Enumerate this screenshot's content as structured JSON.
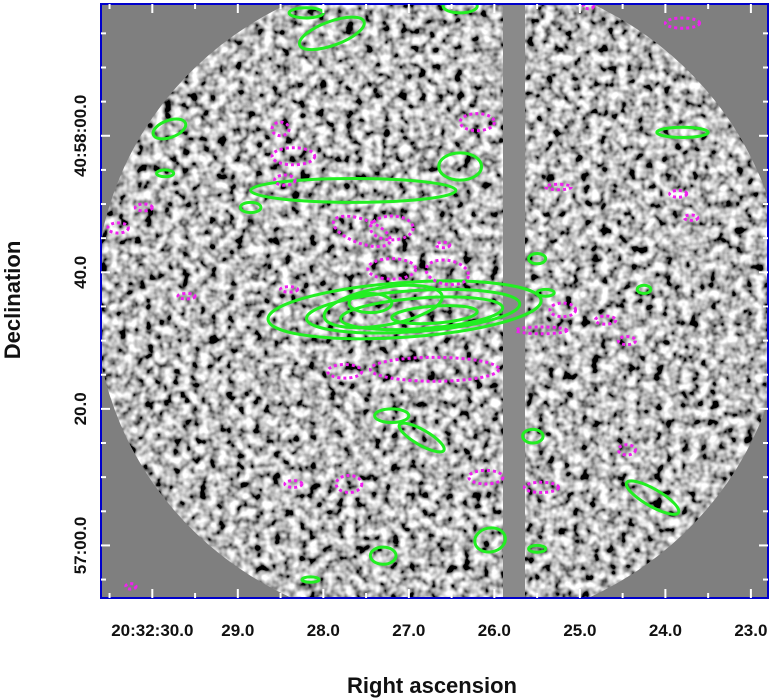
{
  "chart_data": {
    "type": "heatmap",
    "title": "",
    "xlabel": "Right ascension",
    "ylabel": "Declination",
    "colormap": "greyscale",
    "x_ticks": [
      {
        "label": "20:32:30.0",
        "value_s": 30.0
      },
      {
        "label": "29.0",
        "value_s": 29.0
      },
      {
        "label": "28.0",
        "value_s": 28.0
      },
      {
        "label": "27.0",
        "value_s": 27.0
      },
      {
        "label": "26.0",
        "value_s": 26.0
      },
      {
        "label": "25.0",
        "value_s": 25.0
      },
      {
        "label": "24.0",
        "value_s": 24.0
      },
      {
        "label": "23.0",
        "value_s": 23.0
      }
    ],
    "y_ticks": [
      {
        "label": "40:58:00.0",
        "value_s": 60.0
      },
      {
        "label": "40.0",
        "value_s": 40.0
      },
      {
        "label": "20.0",
        "value_s": 20.0
      },
      {
        "label": "57:00.0",
        "value_s": 0.0
      }
    ],
    "xlim_s": [
      30.6,
      22.8
    ],
    "ylim_s": [
      -7.7,
      79.3
    ],
    "frame_color": "#0000cc",
    "series": [
      {
        "color": "#22ee22",
        "style": "solid",
        "contours": [
          {
            "ra": 27.05,
            "dec": 34.5,
            "w": 1.6,
            "h": 8,
            "rot": -4
          },
          {
            "ra": 26.95,
            "dec": 34.3,
            "w": 1.25,
            "h": 6,
            "rot": -4
          },
          {
            "ra": 26.85,
            "dec": 34.0,
            "w": 0.95,
            "h": 4.5,
            "rot": -4
          },
          {
            "ra": 26.7,
            "dec": 33.8,
            "w": 0.5,
            "h": 2.5,
            "rot": -4
          },
          {
            "ra": 27.3,
            "dec": 35.0,
            "w": 0.7,
            "h": 5.5,
            "rot": -10
          },
          {
            "ra": 27.45,
            "dec": 35.5,
            "w": 0.25,
            "h": 2.8,
            "rot": 0
          },
          {
            "ra": 27.65,
            "dec": 52.0,
            "w": 1.2,
            "h": 3.5,
            "rot": 0
          },
          {
            "ra": 27.9,
            "dec": 75.0,
            "w": 0.4,
            "h": 3.5,
            "rot": -20
          },
          {
            "ra": 28.2,
            "dec": 78.0,
            "w": 0.2,
            "h": 1.5,
            "rot": 0
          },
          {
            "ra": 26.4,
            "dec": 79.0,
            "w": 0.2,
            "h": 2.0,
            "rot": 0
          },
          {
            "ra": 29.8,
            "dec": 61.0,
            "w": 0.2,
            "h": 2.5,
            "rot": -20
          },
          {
            "ra": 29.85,
            "dec": 54.5,
            "w": 0.1,
            "h": 1.0,
            "rot": 0
          },
          {
            "ra": 28.85,
            "dec": 49.5,
            "w": 0.12,
            "h": 1.5,
            "rot": 0
          },
          {
            "ra": 26.4,
            "dec": 55.5,
            "w": 0.25,
            "h": 4.0,
            "rot": 0
          },
          {
            "ra": 25.5,
            "dec": 42.0,
            "w": 0.1,
            "h": 1.5,
            "rot": 0
          },
          {
            "ra": 25.4,
            "dec": 37.0,
            "w": 0.1,
            "h": 1.0,
            "rot": 0
          },
          {
            "ra": 27.2,
            "dec": 19.0,
            "w": 0.2,
            "h": 2.0,
            "rot": 0
          },
          {
            "ra": 26.85,
            "dec": 15.8,
            "w": 0.3,
            "h": 2.2,
            "rot": 30
          },
          {
            "ra": 25.55,
            "dec": 16.0,
            "w": 0.12,
            "h": 2.0,
            "rot": 0
          },
          {
            "ra": 26.05,
            "dec": 0.8,
            "w": 0.18,
            "h": 3.5,
            "rot": -10
          },
          {
            "ra": 27.3,
            "dec": -1.5,
            "w": 0.15,
            "h": 2.5,
            "rot": 0
          },
          {
            "ra": 25.5,
            "dec": -0.5,
            "w": 0.1,
            "h": 1.0,
            "rot": 0
          },
          {
            "ra": 24.15,
            "dec": 7.0,
            "w": 0.35,
            "h": 2.5,
            "rot": 30
          },
          {
            "ra": 23.8,
            "dec": 60.5,
            "w": 0.3,
            "h": 1.5,
            "rot": 0
          },
          {
            "ra": 24.25,
            "dec": 37.5,
            "w": 0.08,
            "h": 1.2,
            "rot": 0
          },
          {
            "ra": 28.15,
            "dec": -5.0,
            "w": 0.1,
            "h": 0.8,
            "rot": 0
          }
        ]
      },
      {
        "color": "#ee22ee",
        "style": "dotted",
        "contours": [
          {
            "ra": 27.55,
            "dec": 46.0,
            "w": 0.35,
            "h": 3.5,
            "rot": 20
          },
          {
            "ra": 27.2,
            "dec": 46.5,
            "w": 0.25,
            "h": 3.5,
            "rot": 0
          },
          {
            "ra": 27.2,
            "dec": 40.5,
            "w": 0.28,
            "h": 3.0,
            "rot": 0
          },
          {
            "ra": 26.55,
            "dec": 40.0,
            "w": 0.25,
            "h": 3.5,
            "rot": 10
          },
          {
            "ra": 26.7,
            "dec": 25.8,
            "w": 0.75,
            "h": 3.5,
            "rot": 0
          },
          {
            "ra": 27.75,
            "dec": 25.5,
            "w": 0.2,
            "h": 2.0,
            "rot": 0
          },
          {
            "ra": 28.35,
            "dec": 57.0,
            "w": 0.25,
            "h": 2.5,
            "rot": 0
          },
          {
            "ra": 28.5,
            "dec": 61.0,
            "w": 0.1,
            "h": 2.0,
            "rot": 0
          },
          {
            "ra": 28.45,
            "dec": 53.5,
            "w": 0.12,
            "h": 1.5,
            "rot": 0
          },
          {
            "ra": 26.2,
            "dec": 62.0,
            "w": 0.2,
            "h": 2.5,
            "rot": 0
          },
          {
            "ra": 25.45,
            "dec": 31.5,
            "w": 0.3,
            "h": 1.0,
            "rot": 0
          },
          {
            "ra": 25.2,
            "dec": 34.5,
            "w": 0.15,
            "h": 2.0,
            "rot": 0
          },
          {
            "ra": 24.7,
            "dec": 33.0,
            "w": 0.12,
            "h": 1.2,
            "rot": 0
          },
          {
            "ra": 24.45,
            "dec": 30.0,
            "w": 0.1,
            "h": 1.2,
            "rot": 0
          },
          {
            "ra": 27.7,
            "dec": 9.0,
            "w": 0.15,
            "h": 2.5,
            "rot": 0
          },
          {
            "ra": 26.1,
            "dec": 10.0,
            "w": 0.2,
            "h": 2.0,
            "rot": 0
          },
          {
            "ra": 25.45,
            "dec": 8.5,
            "w": 0.2,
            "h": 1.5,
            "rot": 0
          },
          {
            "ra": 24.45,
            "dec": 14.0,
            "w": 0.1,
            "h": 1.5,
            "rot": 0
          },
          {
            "ra": 23.8,
            "dec": 76.5,
            "w": 0.2,
            "h": 1.5,
            "rot": 0
          },
          {
            "ra": 30.4,
            "dec": 46.5,
            "w": 0.12,
            "h": 1.5,
            "rot": 0
          },
          {
            "ra": 30.1,
            "dec": 49.5,
            "w": 0.1,
            "h": 1.0,
            "rot": 0
          },
          {
            "ra": 28.35,
            "dec": 9.0,
            "w": 0.1,
            "h": 1.0,
            "rot": 0
          },
          {
            "ra": 29.6,
            "dec": 36.5,
            "w": 0.1,
            "h": 0.8,
            "rot": 0
          },
          {
            "ra": 28.4,
            "dec": 37.5,
            "w": 0.1,
            "h": 0.8,
            "rot": 0
          },
          {
            "ra": 25.25,
            "dec": 52.5,
            "w": 0.15,
            "h": 0.8,
            "rot": 0
          },
          {
            "ra": 23.85,
            "dec": 51.5,
            "w": 0.1,
            "h": 1.0,
            "rot": 0
          },
          {
            "ra": 23.7,
            "dec": 48.0,
            "w": 0.08,
            "h": 0.8,
            "rot": 0
          },
          {
            "ra": 26.6,
            "dec": 44.0,
            "w": 0.08,
            "h": 0.8,
            "rot": 0
          },
          {
            "ra": 24.9,
            "dec": 79.0,
            "w": 0.06,
            "h": 0.8,
            "rot": 0
          },
          {
            "ra": 30.25,
            "dec": -6.0,
            "w": 0.06,
            "h": 0.8,
            "rot": 0
          }
        ]
      }
    ]
  }
}
